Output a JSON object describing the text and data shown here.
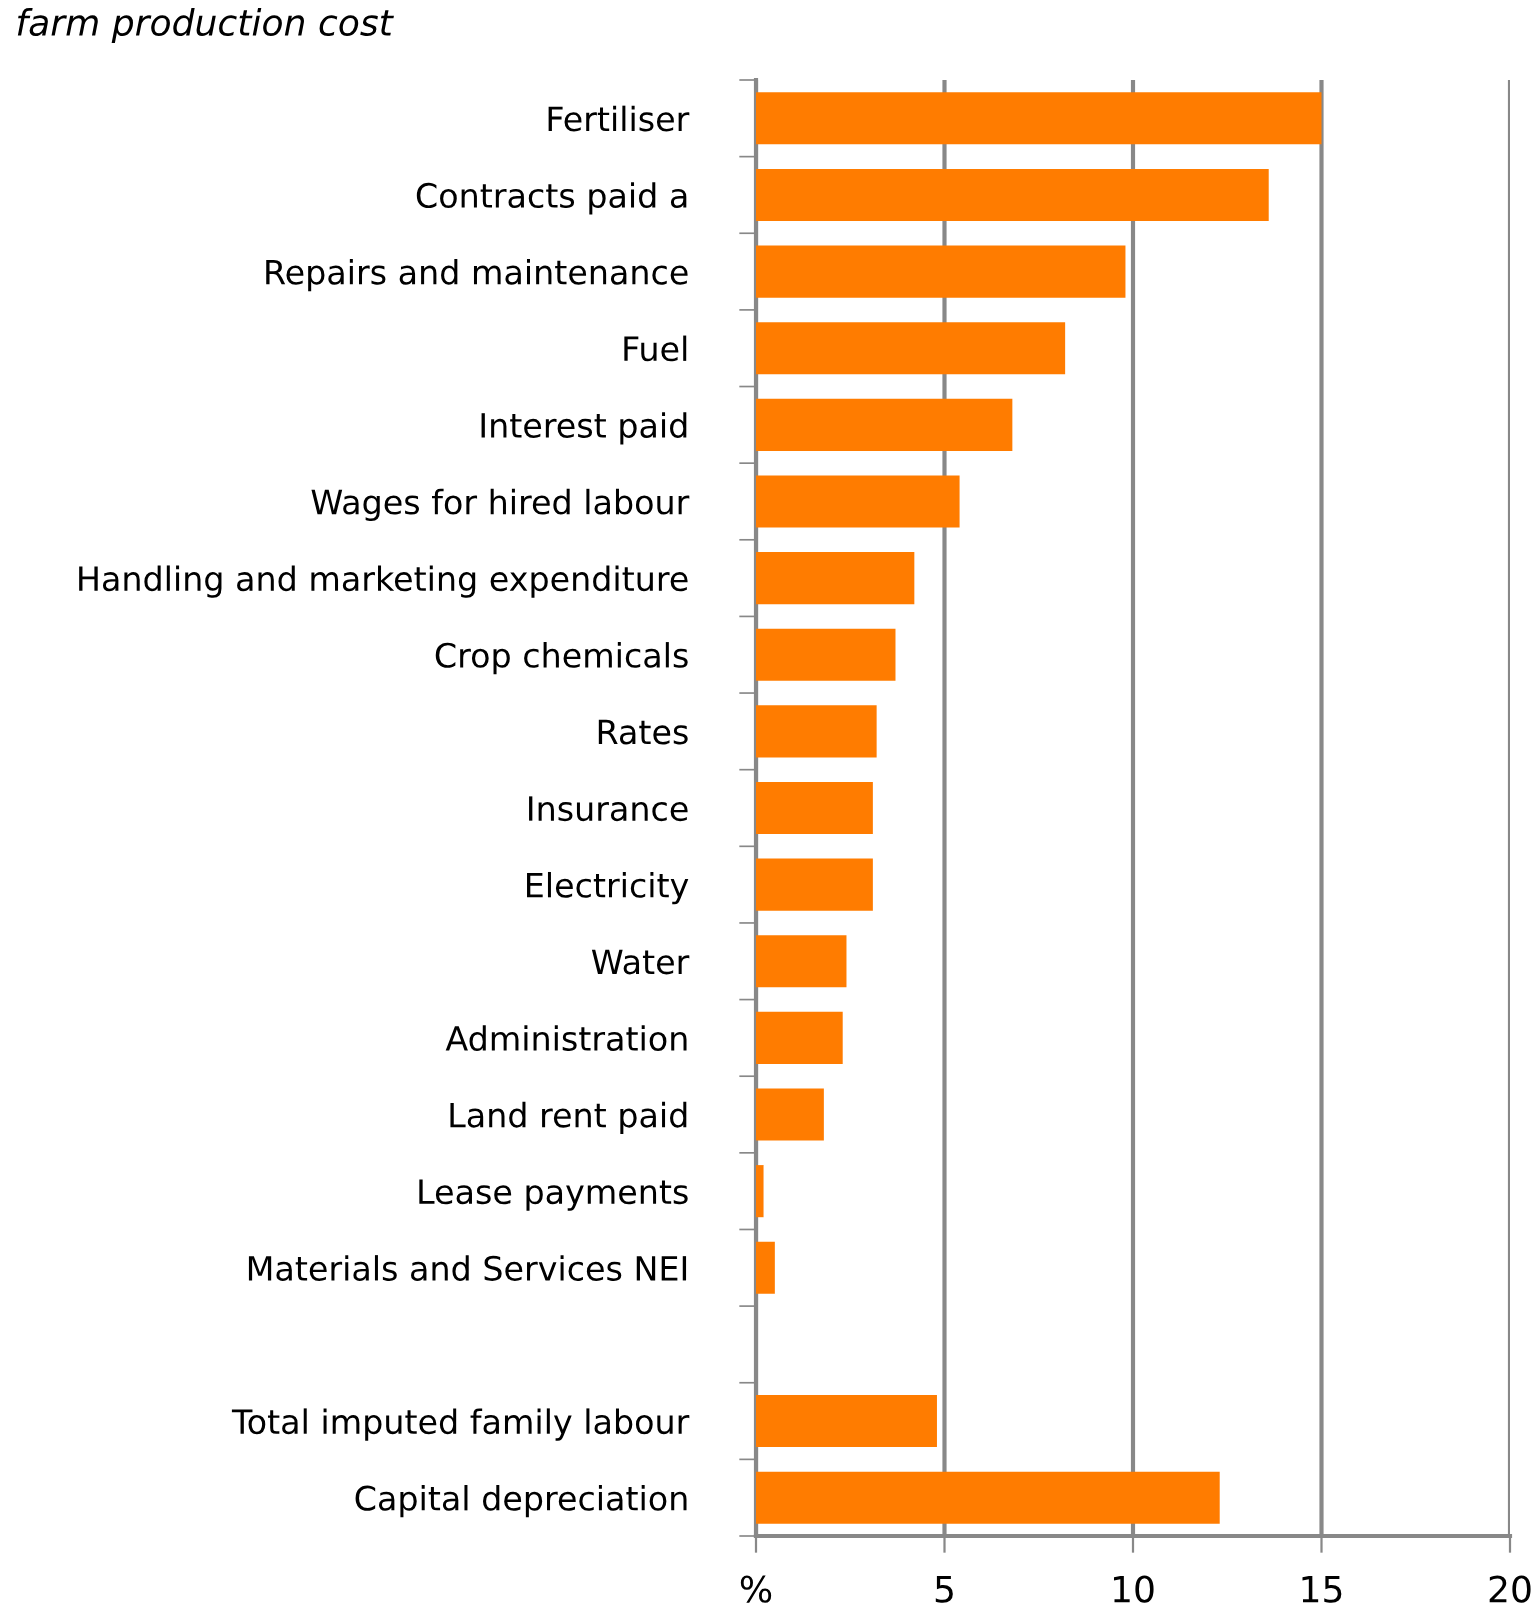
{
  "chart_data": {
    "type": "bar",
    "orientation": "horizontal",
    "title": "farm production cost",
    "categories": [
      "Fertiliser",
      "Contracts paid a",
      "Repairs and maintenance",
      "Fuel",
      "Interest paid",
      "Wages for hired labour",
      "Handling and marketing expenditure",
      "Crop chemicals",
      "Rates",
      "Insurance",
      "Electricity",
      "Water",
      "Administration",
      "Land rent paid",
      "Lease payments",
      "Materials and Services NEI",
      null,
      "Total imputed family labour",
      "Capital depreciation"
    ],
    "values": [
      15.0,
      13.6,
      9.8,
      8.2,
      6.8,
      5.4,
      4.2,
      3.7,
      3.2,
      3.1,
      3.1,
      2.4,
      2.3,
      1.8,
      0.2,
      0.5,
      null,
      4.8,
      12.3
    ],
    "color": "#ff7c00",
    "xlim": [
      0,
      20
    ],
    "xticks": [
      {
        "value": 0,
        "label": "%"
      },
      5,
      10,
      15,
      20
    ],
    "grid": "x",
    "legend": false
  }
}
